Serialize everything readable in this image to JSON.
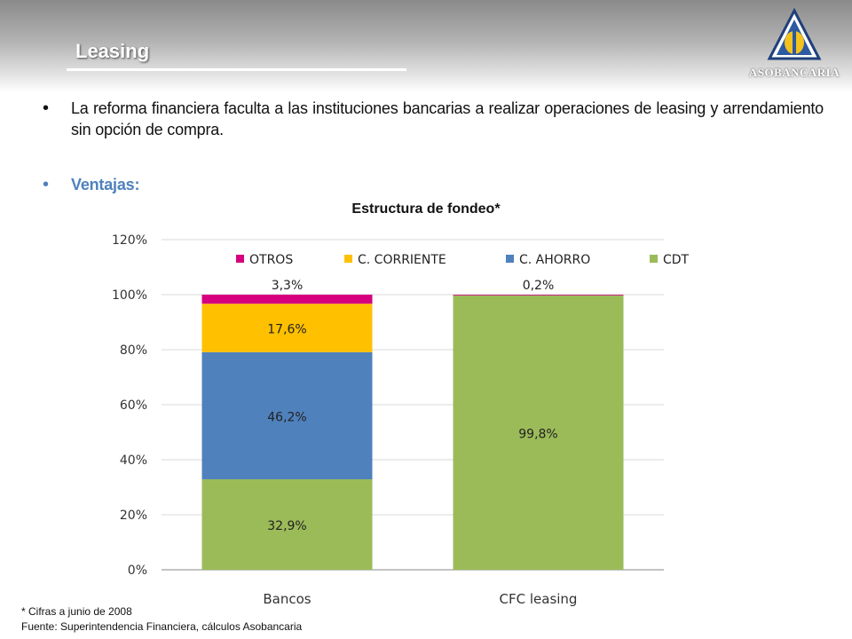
{
  "slide": {
    "title": "Leasing",
    "logo_text": "ASOBANCARIA"
  },
  "bullets": [
    "La reforma financiera faculta a las instituciones bancarias a realizar operaciones de leasing  y arrendamiento sin opción de compra.",
    "Ventajas:"
  ],
  "chart_data": {
    "type": "bar",
    "stacked": true,
    "title": "Estructura de fondeo*",
    "categories": [
      "Bancos",
      "CFC leasing"
    ],
    "series": [
      {
        "name": "CDT",
        "color": "#9bbb59",
        "values": [
          32.9,
          99.8
        ],
        "labels": [
          "32,9%",
          "99,8%"
        ]
      },
      {
        "name": "C. AHORRO",
        "color": "#4f81bd",
        "values": [
          46.2,
          0
        ],
        "labels": [
          "46,2%",
          ""
        ]
      },
      {
        "name": "C. CORRIENTE",
        "color": "#ffc000",
        "values": [
          17.6,
          0
        ],
        "labels": [
          "17,6%",
          ""
        ]
      },
      {
        "name": "OTROS",
        "color": "#d6007f",
        "values": [
          3.3,
          0.2
        ],
        "labels": [
          "3,3%",
          "0,2%"
        ]
      }
    ],
    "legend_order": [
      "OTROS",
      "C. CORRIENTE",
      "C. AHORRO",
      "CDT"
    ],
    "legend_position": "top",
    "ylim": [
      0,
      120
    ],
    "yticks": [
      "0%",
      "20%",
      "40%",
      "60%",
      "80%",
      "100%",
      "120%"
    ],
    "grid": true
  },
  "footnotes": {
    "note": "* Cifras a junio de 2008",
    "source": "Fuente: Superintendencia Financiera, cálculos Asobancaria"
  }
}
